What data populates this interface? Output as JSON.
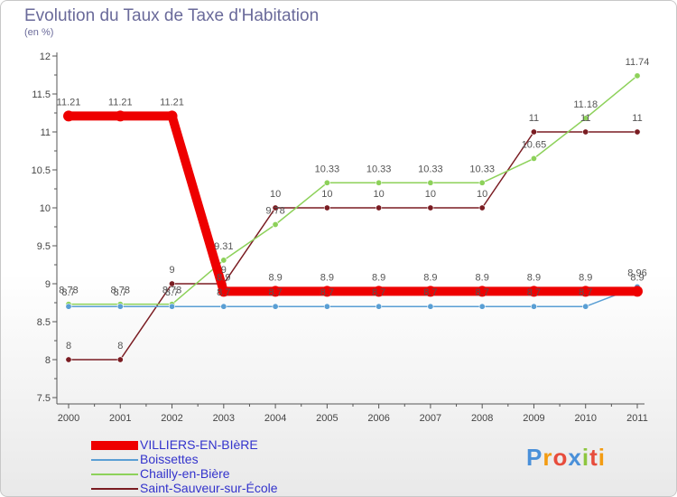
{
  "title": "Evolution du Taux de Taxe d'Habitation",
  "subtitle": "(en %)",
  "logo": {
    "text": "Proxiti",
    "letter_colors": [
      "#4a90d9",
      "#f39c12",
      "#e74c3c",
      "#4a90d9",
      "#8dc63f",
      "#e74c3c",
      "#f39c12"
    ]
  },
  "chart_data": {
    "type": "line",
    "title": "Evolution du Taux de Taxe d'Habitation",
    "ylabel": "(en %)",
    "xlabel": "",
    "x": [
      "2000",
      "2001",
      "2002",
      "2003",
      "2004",
      "2005",
      "2006",
      "2007",
      "2008",
      "2009",
      "2010",
      "2011"
    ],
    "ylim": [
      7.5,
      12
    ],
    "yticks": [
      "7.5",
      "8",
      "8.5",
      "9",
      "9.5",
      "10",
      "10.5",
      "11",
      "11.5",
      "12"
    ],
    "grid": false,
    "legend": "bottom-left",
    "series": [
      {
        "name": "VILLIERS-EN-BIèRE",
        "color": "#ee0000",
        "values": [
          11.21,
          11.21,
          11.21,
          8.9,
          8.9,
          8.9,
          8.9,
          8.9,
          8.9,
          8.9,
          8.9,
          8.9
        ],
        "labels": [
          "11.21",
          "11.21",
          "11.21",
          "8.9",
          "8.9",
          "8.9",
          "8.9",
          "8.9",
          "8.9",
          "8.9",
          "8.9",
          "8.9"
        ]
      },
      {
        "name": "Boissettes",
        "color": "#5a9fd4",
        "values": [
          8.7,
          8.7,
          8.7,
          8.7,
          8.7,
          8.7,
          8.7,
          8.7,
          8.7,
          8.7,
          8.7,
          8.96
        ],
        "labels": [
          "8.7",
          "8.7",
          "8.7",
          "8.7",
          "8.7",
          "8.7",
          "8.7",
          "8.7",
          "8.7",
          "8.7",
          "8.7",
          "8.96"
        ]
      },
      {
        "name": "Chailly-en-Bière",
        "color": "#8dd15a",
        "values": [
          8.73,
          8.73,
          8.73,
          9.31,
          9.78,
          10.33,
          10.33,
          10.33,
          10.33,
          10.65,
          11.18,
          11.74
        ],
        "labels": [
          "8.73",
          "8.73",
          "8.73",
          "9.31",
          "9.78",
          "10.33",
          "10.33",
          "10.33",
          "10.33",
          "10.65",
          "11.18",
          "11.74"
        ]
      },
      {
        "name": "Saint-Sauveur-sur-École",
        "color": "#7a1c22",
        "values": [
          8,
          8,
          9,
          9,
          10,
          10,
          10,
          10,
          10,
          11,
          11,
          11
        ],
        "labels": [
          "8",
          "8",
          "9",
          "9",
          "10",
          "10",
          "10",
          "10",
          "10",
          "11",
          "11",
          "11"
        ]
      }
    ]
  }
}
